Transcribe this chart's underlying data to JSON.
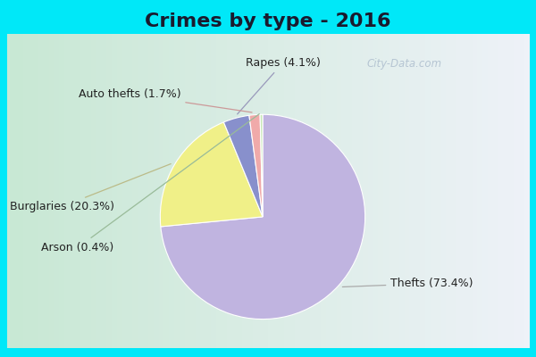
{
  "title": "Crimes by type - 2016",
  "labels": [
    "Thefts",
    "Burglaries",
    "Rapes",
    "Auto thefts",
    "Arson"
  ],
  "values": [
    73.4,
    20.3,
    4.1,
    1.7,
    0.4
  ],
  "colors": [
    "#c0b4e0",
    "#f0f088",
    "#8890cc",
    "#f0aaaa",
    "#c8e8b8"
  ],
  "label_texts": [
    "Thefts (73.4%)",
    "Burglaries (20.3%)",
    "Rapes (4.1%)",
    "Auto thefts (1.7%)",
    "Arson (0.4%)"
  ],
  "background_cyan": "#00e8f8",
  "background_green": "#c8e8d0",
  "background_white": "#eef0f8",
  "title_fontsize": 16,
  "label_fontsize": 9,
  "cyan_border": 8
}
